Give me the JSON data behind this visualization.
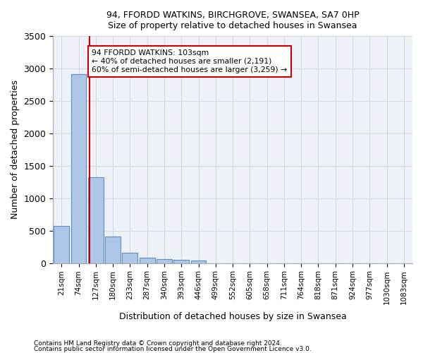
{
  "title1": "94, FFORDD WATKINS, BIRCHGROVE, SWANSEA, SA7 0HP",
  "title2": "Size of property relative to detached houses in Swansea",
  "xlabel": "Distribution of detached houses by size in Swansea",
  "ylabel": "Number of detached properties",
  "footnote1": "Contains HM Land Registry data © Crown copyright and database right 2024.",
  "footnote2": "Contains public sector information licensed under the Open Government Licence v3.0.",
  "bin_labels": [
    "21sqm",
    "74sqm",
    "127sqm",
    "180sqm",
    "233sqm",
    "287sqm",
    "340sqm",
    "393sqm",
    "446sqm",
    "499sqm",
    "552sqm",
    "605sqm",
    "658sqm",
    "711sqm",
    "764sqm",
    "818sqm",
    "871sqm",
    "924sqm",
    "977sqm",
    "1030sqm",
    "1083sqm"
  ],
  "bar_values": [
    570,
    2910,
    1320,
    410,
    155,
    80,
    55,
    45,
    35,
    0,
    0,
    0,
    0,
    0,
    0,
    0,
    0,
    0,
    0,
    0,
    0
  ],
  "bar_color": "#aec6e8",
  "bar_edge_color": "#5a8fc0",
  "grid_color": "#d0d8e8",
  "background_color": "#eef2f8",
  "vline_color": "#cc0000",
  "ylim": [
    0,
    3500
  ],
  "yticks": [
    0,
    500,
    1000,
    1500,
    2000,
    2500,
    3000,
    3500
  ],
  "annotation_text": "94 FFORDD WATKINS: 103sqm\n← 40% of detached houses are smaller (2,191)\n60% of semi-detached houses are larger (3,259) →",
  "vline_position": 1.62
}
